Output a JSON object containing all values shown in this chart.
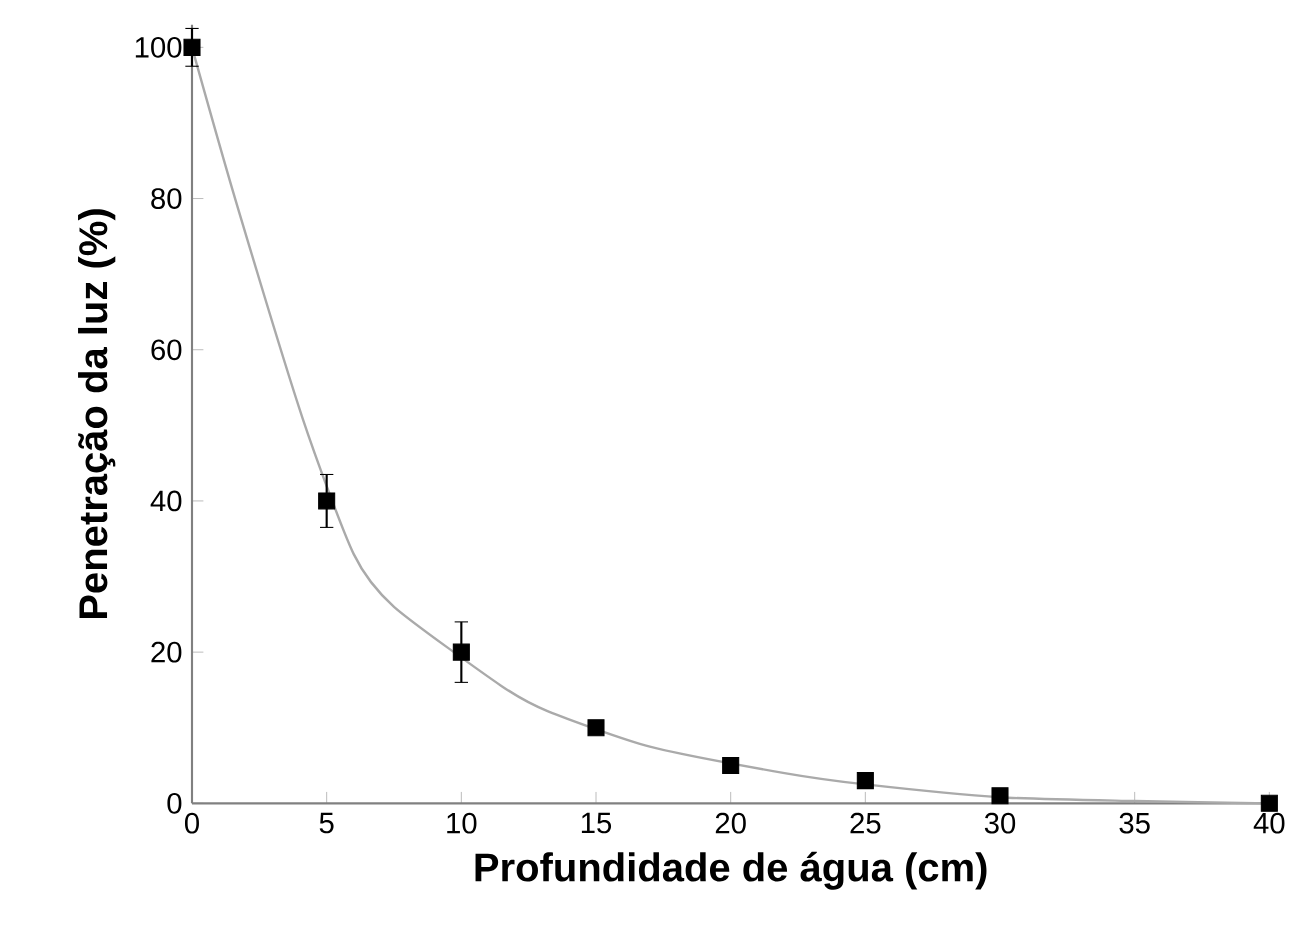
{
  "chart_data": {
    "type": "scatter",
    "xlabel": "Profundidade de água (cm)",
    "ylabel": "Penetração da luz (%)",
    "xlim": [
      0,
      40
    ],
    "ylim": [
      0,
      103
    ],
    "xticks": [
      0,
      5,
      10,
      15,
      20,
      25,
      30,
      35,
      40
    ],
    "yticks": [
      0,
      20,
      40,
      60,
      80,
      100
    ],
    "marker": "square",
    "series": [
      {
        "type": "line",
        "color": "#aaaaaa",
        "marker": "none",
        "x": [
          0,
          1.6,
          4.1,
          6,
          7.5,
          11.5,
          13.2,
          17,
          22,
          25,
          30,
          35,
          40
        ],
        "values": [
          100,
          80,
          51,
          33,
          26,
          15.5,
          12.2,
          7.5,
          4,
          2.5,
          0.8,
          0.3,
          0
        ]
      },
      {
        "color": "#000000",
        "x": [
          0,
          5,
          10,
          15,
          20,
          25,
          30,
          40
        ],
        "values": [
          100,
          40,
          20,
          10,
          5,
          3,
          1,
          0
        ],
        "errors": [
          2.5,
          3.5,
          4,
          null,
          null,
          null,
          null,
          null
        ]
      }
    ]
  }
}
